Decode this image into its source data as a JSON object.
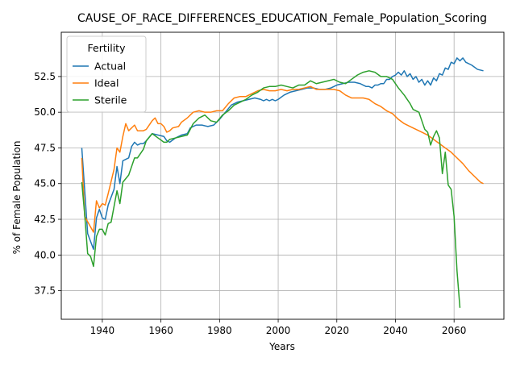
{
  "chart_data": {
    "type": "line",
    "title": "CAUSE_OF_RACE_DIFFERENCES_EDUCATION_Female_Population_Scoring",
    "xlabel": "Years",
    "ylabel": "% of Female Population",
    "xlim": [
      1926,
      2077
    ],
    "ylim": [
      35.5,
      55.6
    ],
    "xticks": [
      1940,
      1960,
      1980,
      2000,
      2020,
      2040,
      2060
    ],
    "yticks": [
      37.5,
      40.0,
      42.5,
      45.0,
      47.5,
      50.0,
      52.5
    ],
    "grid": true,
    "legend": {
      "title": "Fertility",
      "placement": "upper-left"
    },
    "series": [
      {
        "name": "Actual",
        "color": "#1f77b4",
        "points": [
          [
            1933,
            47.5
          ],
          [
            1935,
            41.5
          ],
          [
            1937,
            40.4
          ],
          [
            1938,
            42.6
          ],
          [
            1939,
            43.2
          ],
          [
            1940,
            42.6
          ],
          [
            1941,
            42.5
          ],
          [
            1942,
            43.5
          ],
          [
            1944,
            44.6
          ],
          [
            1945,
            46.2
          ],
          [
            1946,
            45.0
          ],
          [
            1947,
            46.6
          ],
          [
            1949,
            46.8
          ],
          [
            1950,
            47.6
          ],
          [
            1951,
            47.9
          ],
          [
            1952,
            47.7
          ],
          [
            1953,
            47.8
          ],
          [
            1954,
            47.8
          ],
          [
            1955,
            48.0
          ],
          [
            1957,
            48.5
          ],
          [
            1959,
            48.4
          ],
          [
            1961,
            48.3
          ],
          [
            1962,
            48.0
          ],
          [
            1963,
            47.9
          ],
          [
            1965,
            48.2
          ],
          [
            1967,
            48.4
          ],
          [
            1969,
            48.5
          ],
          [
            1970,
            48.9
          ],
          [
            1972,
            49.1
          ],
          [
            1974,
            49.1
          ],
          [
            1976,
            49.0
          ],
          [
            1978,
            49.1
          ],
          [
            1980,
            49.5
          ],
          [
            1982,
            50.0
          ],
          [
            1984,
            50.5
          ],
          [
            1986,
            50.7
          ],
          [
            1988,
            50.8
          ],
          [
            1990,
            50.9
          ],
          [
            1992,
            51.0
          ],
          [
            1994,
            50.9
          ],
          [
            1995,
            50.8
          ],
          [
            1996,
            50.9
          ],
          [
            1997,
            50.8
          ],
          [
            1998,
            50.9
          ],
          [
            1999,
            50.8
          ],
          [
            2000,
            50.9
          ],
          [
            2002,
            51.2
          ],
          [
            2004,
            51.4
          ],
          [
            2006,
            51.5
          ],
          [
            2008,
            51.6
          ],
          [
            2010,
            51.7
          ],
          [
            2012,
            51.7
          ],
          [
            2014,
            51.6
          ],
          [
            2016,
            51.6
          ],
          [
            2018,
            51.7
          ],
          [
            2020,
            51.9
          ],
          [
            2022,
            52.0
          ],
          [
            2024,
            52.1
          ],
          [
            2026,
            52.1
          ],
          [
            2028,
            52.0
          ],
          [
            2029,
            51.9
          ],
          [
            2030,
            51.8
          ],
          [
            2031,
            51.8
          ],
          [
            2032,
            51.7
          ],
          [
            2033,
            51.9
          ],
          [
            2034,
            51.9
          ],
          [
            2035,
            52.0
          ],
          [
            2036,
            52.0
          ],
          [
            2037,
            52.3
          ],
          [
            2038,
            52.3
          ],
          [
            2039,
            52.5
          ],
          [
            2040,
            52.6
          ],
          [
            2041,
            52.8
          ],
          [
            2042,
            52.6
          ],
          [
            2043,
            52.9
          ],
          [
            2044,
            52.5
          ],
          [
            2045,
            52.7
          ],
          [
            2046,
            52.3
          ],
          [
            2047,
            52.5
          ],
          [
            2048,
            52.1
          ],
          [
            2049,
            52.3
          ],
          [
            2050,
            51.9
          ],
          [
            2051,
            52.2
          ],
          [
            2052,
            51.9
          ],
          [
            2053,
            52.4
          ],
          [
            2054,
            52.2
          ],
          [
            2055,
            52.7
          ],
          [
            2056,
            52.6
          ],
          [
            2057,
            53.1
          ],
          [
            2058,
            53.0
          ],
          [
            2059,
            53.5
          ],
          [
            2060,
            53.4
          ],
          [
            2061,
            53.8
          ],
          [
            2062,
            53.6
          ],
          [
            2063,
            53.8
          ],
          [
            2064,
            53.5
          ],
          [
            2066,
            53.3
          ],
          [
            2068,
            53.0
          ],
          [
            2070,
            52.9
          ]
        ]
      },
      {
        "name": "Ideal",
        "color": "#ff7f0e",
        "points": [
          [
            1933,
            46.8
          ],
          [
            1934,
            42.7
          ],
          [
            1937,
            41.6
          ],
          [
            1938,
            43.8
          ],
          [
            1939,
            43.3
          ],
          [
            1940,
            43.6
          ],
          [
            1941,
            43.5
          ],
          [
            1942,
            44.3
          ],
          [
            1944,
            46.0
          ],
          [
            1945,
            47.5
          ],
          [
            1946,
            47.2
          ],
          [
            1947,
            48.3
          ],
          [
            1948,
            49.2
          ],
          [
            1949,
            48.7
          ],
          [
            1951,
            49.1
          ],
          [
            1952,
            48.7
          ],
          [
            1953,
            48.7
          ],
          [
            1954,
            48.7
          ],
          [
            1955,
            48.8
          ],
          [
            1957,
            49.4
          ],
          [
            1958,
            49.6
          ],
          [
            1959,
            49.2
          ],
          [
            1960,
            49.2
          ],
          [
            1961,
            49.0
          ],
          [
            1962,
            48.6
          ],
          [
            1963,
            48.7
          ],
          [
            1964,
            48.9
          ],
          [
            1966,
            49.0
          ],
          [
            1967,
            49.3
          ],
          [
            1969,
            49.6
          ],
          [
            1971,
            50.0
          ],
          [
            1973,
            50.1
          ],
          [
            1975,
            50.0
          ],
          [
            1977,
            50.0
          ],
          [
            1979,
            50.1
          ],
          [
            1981,
            50.1
          ],
          [
            1983,
            50.6
          ],
          [
            1985,
            51.0
          ],
          [
            1987,
            51.1
          ],
          [
            1989,
            51.1
          ],
          [
            1991,
            51.3
          ],
          [
            1993,
            51.5
          ],
          [
            1995,
            51.6
          ],
          [
            1997,
            51.5
          ],
          [
            1999,
            51.5
          ],
          [
            2001,
            51.6
          ],
          [
            2003,
            51.5
          ],
          [
            2005,
            51.6
          ],
          [
            2007,
            51.6
          ],
          [
            2009,
            51.7
          ],
          [
            2011,
            51.8
          ],
          [
            2013,
            51.6
          ],
          [
            2015,
            51.6
          ],
          [
            2017,
            51.6
          ],
          [
            2019,
            51.6
          ],
          [
            2021,
            51.5
          ],
          [
            2023,
            51.2
          ],
          [
            2025,
            51.0
          ],
          [
            2027,
            51.0
          ],
          [
            2029,
            51.0
          ],
          [
            2031,
            50.9
          ],
          [
            2033,
            50.6
          ],
          [
            2035,
            50.4
          ],
          [
            2037,
            50.1
          ],
          [
            2039,
            49.9
          ],
          [
            2041,
            49.5
          ],
          [
            2043,
            49.2
          ],
          [
            2045,
            49.0
          ],
          [
            2047,
            48.8
          ],
          [
            2049,
            48.6
          ],
          [
            2051,
            48.4
          ],
          [
            2053,
            48.1
          ],
          [
            2055,
            47.8
          ],
          [
            2057,
            47.5
          ],
          [
            2059,
            47.2
          ],
          [
            2061,
            46.8
          ],
          [
            2063,
            46.4
          ],
          [
            2065,
            45.9
          ],
          [
            2067,
            45.5
          ],
          [
            2069,
            45.1
          ],
          [
            2070,
            45.0
          ]
        ]
      },
      {
        "name": "Sterile",
        "color": "#2ca02c",
        "points": [
          [
            1933,
            45.1
          ],
          [
            1934,
            42.8
          ],
          [
            1935,
            40.1
          ],
          [
            1936,
            39.9
          ],
          [
            1937,
            39.2
          ],
          [
            1938,
            41.3
          ],
          [
            1939,
            41.8
          ],
          [
            1940,
            41.8
          ],
          [
            1941,
            41.4
          ],
          [
            1942,
            42.2
          ],
          [
            1943,
            42.3
          ],
          [
            1944,
            43.4
          ],
          [
            1945,
            44.5
          ],
          [
            1946,
            43.6
          ],
          [
            1947,
            45.1
          ],
          [
            1949,
            45.6
          ],
          [
            1950,
            46.2
          ],
          [
            1951,
            46.8
          ],
          [
            1952,
            46.8
          ],
          [
            1953,
            47.1
          ],
          [
            1954,
            47.4
          ],
          [
            1955,
            48.0
          ],
          [
            1957,
            48.5
          ],
          [
            1959,
            48.2
          ],
          [
            1961,
            47.9
          ],
          [
            1962,
            47.9
          ],
          [
            1963,
            48.1
          ],
          [
            1965,
            48.2
          ],
          [
            1967,
            48.3
          ],
          [
            1969,
            48.4
          ],
          [
            1971,
            49.2
          ],
          [
            1973,
            49.6
          ],
          [
            1975,
            49.8
          ],
          [
            1977,
            49.4
          ],
          [
            1979,
            49.3
          ],
          [
            1981,
            49.8
          ],
          [
            1983,
            50.1
          ],
          [
            1985,
            50.5
          ],
          [
            1987,
            50.7
          ],
          [
            1989,
            50.9
          ],
          [
            1991,
            51.2
          ],
          [
            1993,
            51.4
          ],
          [
            1995,
            51.7
          ],
          [
            1997,
            51.8
          ],
          [
            1999,
            51.8
          ],
          [
            2001,
            51.9
          ],
          [
            2003,
            51.8
          ],
          [
            2005,
            51.7
          ],
          [
            2007,
            51.9
          ],
          [
            2009,
            51.9
          ],
          [
            2011,
            52.2
          ],
          [
            2013,
            52.0
          ],
          [
            2015,
            52.1
          ],
          [
            2017,
            52.2
          ],
          [
            2019,
            52.3
          ],
          [
            2021,
            52.1
          ],
          [
            2023,
            52.0
          ],
          [
            2025,
            52.3
          ],
          [
            2027,
            52.6
          ],
          [
            2029,
            52.8
          ],
          [
            2031,
            52.9
          ],
          [
            2033,
            52.8
          ],
          [
            2035,
            52.5
          ],
          [
            2037,
            52.5
          ],
          [
            2039,
            52.3
          ],
          [
            2041,
            51.7
          ],
          [
            2043,
            51.2
          ],
          [
            2045,
            50.6
          ],
          [
            2046,
            50.2
          ],
          [
            2048,
            50.0
          ],
          [
            2049,
            49.4
          ],
          [
            2050,
            48.8
          ],
          [
            2051,
            48.6
          ],
          [
            2052,
            47.7
          ],
          [
            2053,
            48.3
          ],
          [
            2054,
            48.7
          ],
          [
            2055,
            48.2
          ],
          [
            2056,
            45.7
          ],
          [
            2057,
            47.2
          ],
          [
            2058,
            44.9
          ],
          [
            2059,
            44.6
          ],
          [
            2060,
            42.7
          ],
          [
            2061,
            38.9
          ],
          [
            2062,
            36.3
          ]
        ]
      }
    ]
  }
}
